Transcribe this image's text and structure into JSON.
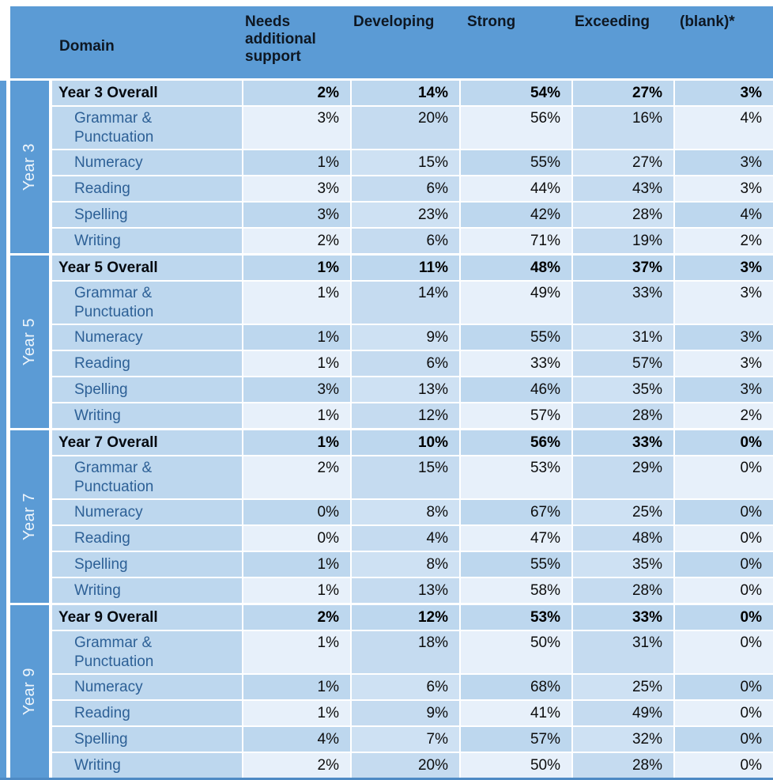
{
  "colors": {
    "accent": "#5b9bd5",
    "header_text": "#0e1722",
    "domain_text": "#2d6096",
    "summary_text": "#05090f",
    "value_text": "#0d0d0d",
    "cell_medium": "#bdd7ee",
    "cell_medium2": "#c5dbf0",
    "cell_light": "#e7f0fa",
    "cell_mediumlight": "#cee1f3",
    "bottom_strip": "#4e8ac4"
  },
  "chart_data": {
    "type": "table",
    "title": "",
    "columns": [
      "Domain",
      "Needs additional support",
      "Developing",
      "Strong",
      "Exceeding",
      "(blank)*"
    ],
    "row_groups": [
      {
        "group": "Year 3",
        "rows": [
          {
            "domain": "Year 3 Overall",
            "is_summary": true,
            "values": [
              "2%",
              "14%",
              "54%",
              "27%",
              "3%"
            ]
          },
          {
            "domain": "Grammar & Punctuation",
            "values": [
              "3%",
              "20%",
              "56%",
              "16%",
              "4%"
            ]
          },
          {
            "domain": "Numeracy",
            "values": [
              "1%",
              "15%",
              "55%",
              "27%",
              "3%"
            ]
          },
          {
            "domain": "Reading",
            "values": [
              "3%",
              "6%",
              "44%",
              "43%",
              "3%"
            ]
          },
          {
            "domain": "Spelling",
            "values": [
              "3%",
              "23%",
              "42%",
              "28%",
              "4%"
            ]
          },
          {
            "domain": "Writing",
            "values": [
              "2%",
              "6%",
              "71%",
              "19%",
              "2%"
            ]
          }
        ]
      },
      {
        "group": "Year 5",
        "rows": [
          {
            "domain": "Year 5 Overall",
            "is_summary": true,
            "values": [
              "1%",
              "11%",
              "48%",
              "37%",
              "3%"
            ]
          },
          {
            "domain": "Grammar & Punctuation",
            "values": [
              "1%",
              "14%",
              "49%",
              "33%",
              "3%"
            ]
          },
          {
            "domain": "Numeracy",
            "values": [
              "1%",
              "9%",
              "55%",
              "31%",
              "3%"
            ]
          },
          {
            "domain": "Reading",
            "values": [
              "1%",
              "6%",
              "33%",
              "57%",
              "3%"
            ]
          },
          {
            "domain": "Spelling",
            "values": [
              "3%",
              "13%",
              "46%",
              "35%",
              "3%"
            ]
          },
          {
            "domain": "Writing",
            "values": [
              "1%",
              "12%",
              "57%",
              "28%",
              "2%"
            ]
          }
        ]
      },
      {
        "group": "Year 7",
        "rows": [
          {
            "domain": "Year 7 Overall",
            "is_summary": true,
            "values": [
              "1%",
              "10%",
              "56%",
              "33%",
              "0%"
            ]
          },
          {
            "domain": "Grammar & Punctuation",
            "values": [
              "2%",
              "15%",
              "53%",
              "29%",
              "0%"
            ]
          },
          {
            "domain": "Numeracy",
            "values": [
              "0%",
              "8%",
              "67%",
              "25%",
              "0%"
            ]
          },
          {
            "domain": "Reading",
            "values": [
              "0%",
              "4%",
              "47%",
              "48%",
              "0%"
            ]
          },
          {
            "domain": "Spelling",
            "values": [
              "1%",
              "8%",
              "55%",
              "35%",
              "0%"
            ]
          },
          {
            "domain": "Writing",
            "values": [
              "1%",
              "13%",
              "58%",
              "28%",
              "0%"
            ]
          }
        ]
      },
      {
        "group": "Year 9",
        "rows": [
          {
            "domain": "Year 9 Overall",
            "is_summary": true,
            "values": [
              "2%",
              "12%",
              "53%",
              "33%",
              "0%"
            ]
          },
          {
            "domain": "Grammar & Punctuation",
            "values": [
              "1%",
              "18%",
              "50%",
              "31%",
              "0%"
            ]
          },
          {
            "domain": "Numeracy",
            "values": [
              "1%",
              "6%",
              "68%",
              "25%",
              "0%"
            ]
          },
          {
            "domain": "Reading",
            "values": [
              "1%",
              "9%",
              "41%",
              "49%",
              "0%"
            ]
          },
          {
            "domain": "Spelling",
            "values": [
              "4%",
              "7%",
              "57%",
              "32%",
              "0%"
            ]
          },
          {
            "domain": "Writing",
            "values": [
              "2%",
              "20%",
              "50%",
              "28%",
              "0%"
            ]
          }
        ]
      }
    ]
  }
}
